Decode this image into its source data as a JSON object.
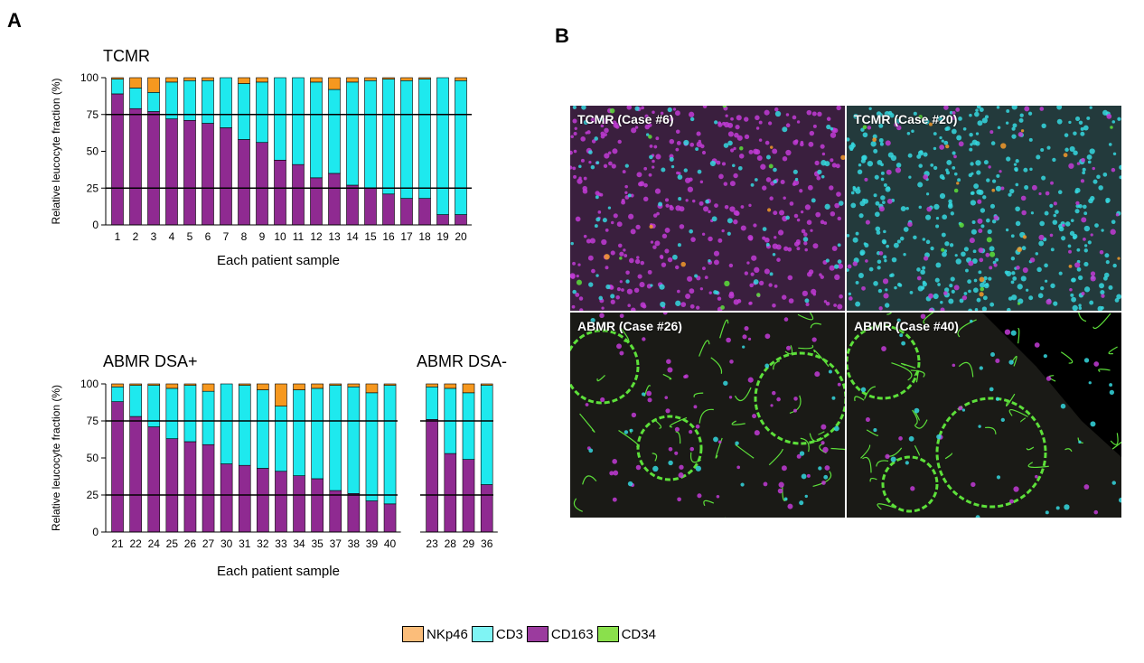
{
  "panels": {
    "a": "A",
    "b": "B"
  },
  "colors": {
    "nkp46": "#f6981f",
    "cd3": "#1ee9ee",
    "cd163": "#8f2a91",
    "cd34": "#7fdc3a"
  },
  "chart_data": [
    {
      "type": "bar",
      "stacked": true,
      "title": "TCMR",
      "xlabel": "Each patient sample",
      "ylabel": "Relative leucocyte fraction (%)",
      "ylim": [
        0,
        100
      ],
      "yticks": [
        0,
        25,
        50,
        75,
        100
      ],
      "reference_lines": [
        25,
        75
      ],
      "categories": [
        "1",
        "2",
        "3",
        "4",
        "5",
        "6",
        "7",
        "8",
        "9",
        "10",
        "11",
        "12",
        "13",
        "14",
        "15",
        "16",
        "17",
        "18",
        "19",
        "20"
      ],
      "series": [
        {
          "name": "CD163",
          "values": [
            89,
            79,
            77,
            72,
            71,
            69,
            66,
            58,
            56,
            44,
            41,
            32,
            35,
            27,
            25,
            21,
            18,
            18,
            7,
            7
          ]
        },
        {
          "name": "CD3",
          "values": [
            10,
            14,
            13,
            25,
            27,
            29,
            34,
            38,
            41,
            56,
            59,
            65,
            57,
            70,
            73,
            78,
            80,
            81,
            93,
            91
          ]
        },
        {
          "name": "NKp46",
          "values": [
            1,
            7,
            10,
            3,
            2,
            2,
            0,
            4,
            3,
            0,
            0,
            3,
            8,
            3,
            2,
            1,
            2,
            1,
            0,
            2
          ]
        }
      ]
    },
    {
      "type": "bar",
      "stacked": true,
      "title": "ABMR DSA+",
      "xlabel": "Each patient sample",
      "ylabel": "Relative leucocyte fraction (%)",
      "ylim": [
        0,
        100
      ],
      "yticks": [
        0,
        25,
        50,
        75,
        100
      ],
      "reference_lines": [
        25,
        75
      ],
      "categories": [
        "21",
        "22",
        "24",
        "25",
        "26",
        "27",
        "30",
        "31",
        "32",
        "33",
        "34",
        "35",
        "37",
        "38",
        "39",
        "40"
      ],
      "series": [
        {
          "name": "CD163",
          "values": [
            88,
            78,
            71,
            63,
            61,
            59,
            46,
            45,
            43,
            41,
            38,
            36,
            28,
            26,
            21,
            19
          ]
        },
        {
          "name": "CD3",
          "values": [
            10,
            21,
            28,
            34,
            38,
            36,
            54,
            54,
            53,
            44,
            58,
            61,
            71,
            72,
            73,
            80
          ]
        },
        {
          "name": "NKp46",
          "values": [
            2,
            1,
            1,
            3,
            1,
            5,
            0,
            1,
            4,
            15,
            4,
            3,
            1,
            2,
            6,
            1
          ]
        }
      ]
    },
    {
      "type": "bar",
      "stacked": true,
      "title": "ABMR DSA-",
      "ylim": [
        0,
        100
      ],
      "reference_lines": [
        25,
        75
      ],
      "categories": [
        "23",
        "28",
        "29",
        "36"
      ],
      "series": [
        {
          "name": "CD163",
          "values": [
            76,
            53,
            49,
            32
          ]
        },
        {
          "name": "CD3",
          "values": [
            22,
            44,
            45,
            67
          ]
        },
        {
          "name": "NKp46",
          "values": [
            2,
            3,
            6,
            1
          ]
        }
      ]
    }
  ],
  "images": [
    {
      "label": "TCMR (Case #6)",
      "dominant": "cd163"
    },
    {
      "label": "TCMR (Case #20)",
      "dominant": "cd3"
    },
    {
      "label": "ABMR (Case #26)",
      "dominant": "cd34"
    },
    {
      "label": "ABMR (Case #40)",
      "dominant": "cd34"
    }
  ],
  "legend": [
    {
      "label": "NKp46",
      "color": "#fbbd7a"
    },
    {
      "label": "CD3",
      "color": "#7ff4f4"
    },
    {
      "label": "CD163",
      "color": "#9b3b9e"
    },
    {
      "label": "CD34",
      "color": "#8ae04c"
    }
  ]
}
